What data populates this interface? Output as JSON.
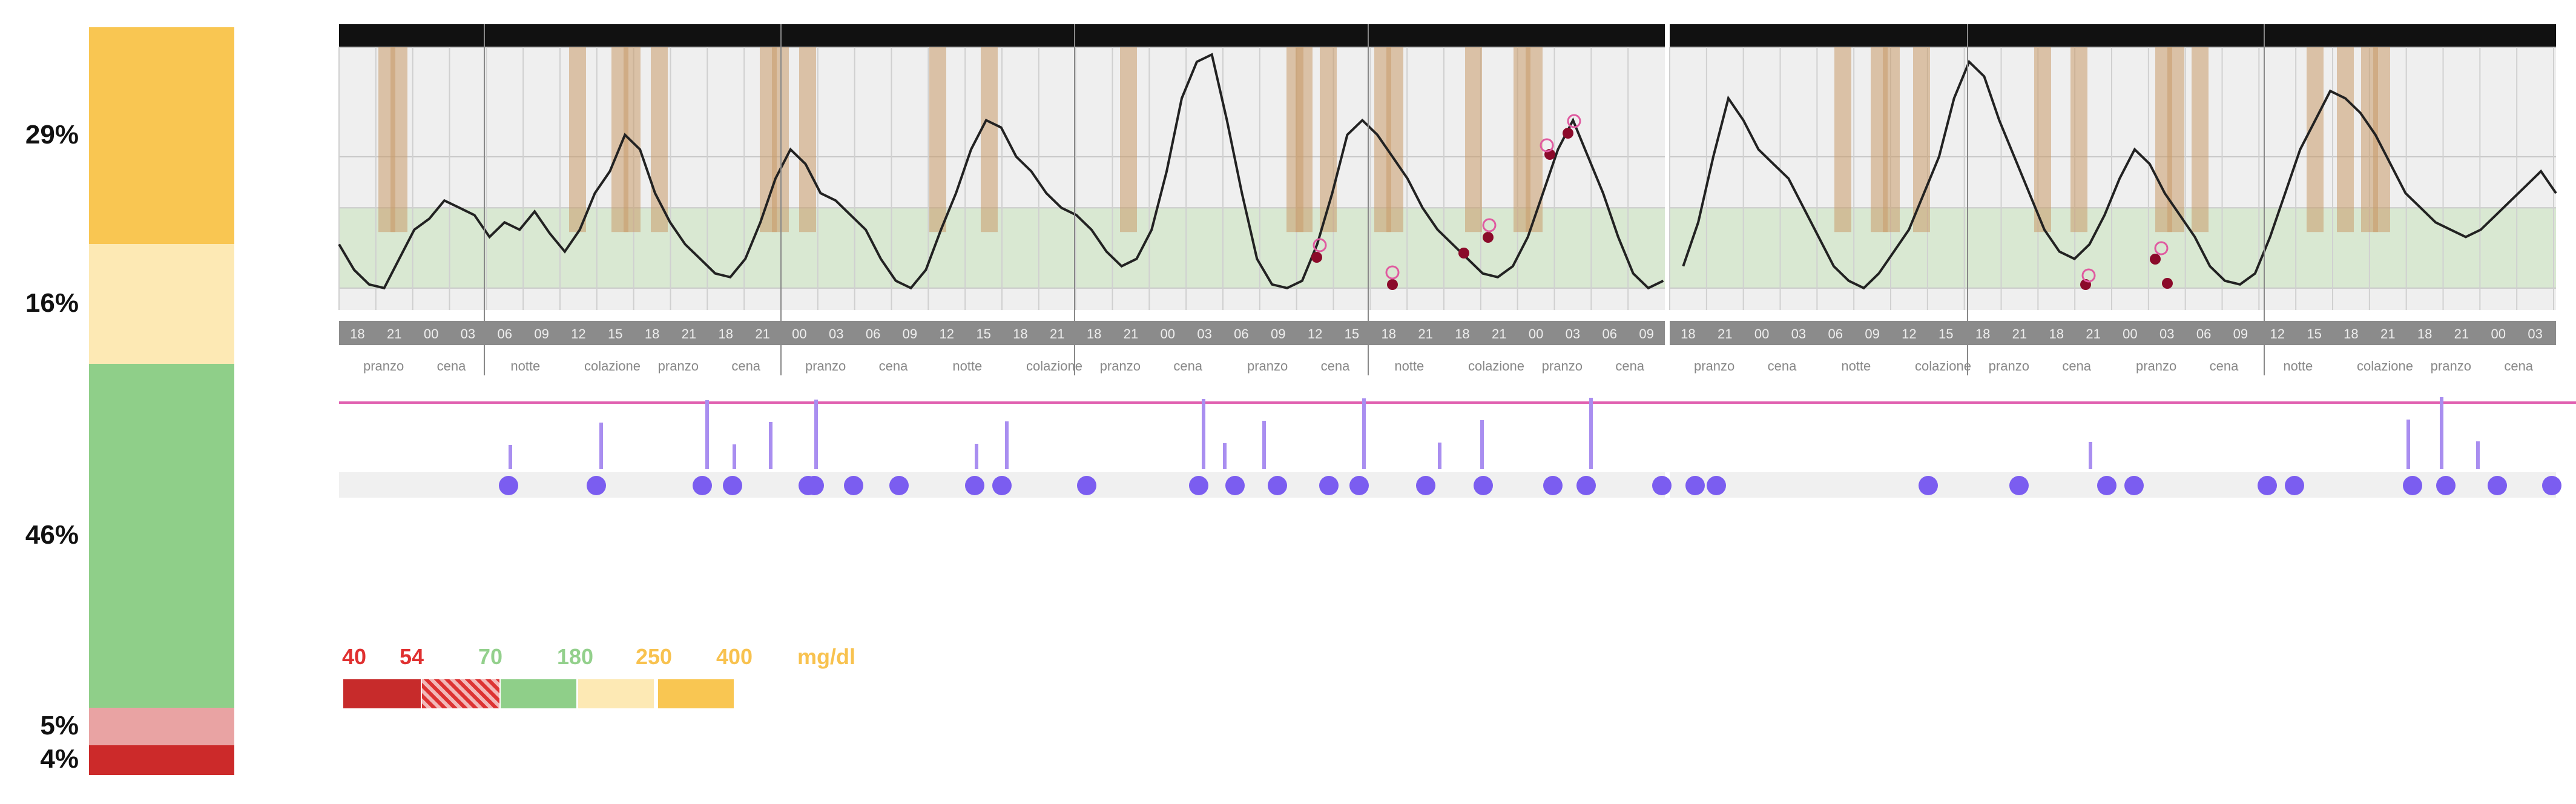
{
  "tir_bar": {
    "segments": [
      {
        "name": "very-high",
        "pct_label": "29%",
        "value": 29,
        "color": "#f9c652"
      },
      {
        "name": "high",
        "pct_label": "16%",
        "value": 16,
        "color": "#fde9b4"
      },
      {
        "name": "in-range",
        "pct_label": "46%",
        "value": 46,
        "color": "#8fcf89"
      },
      {
        "name": "low",
        "pct_label": "5%",
        "value": 5,
        "color": "#e9a3a3"
      },
      {
        "name": "very-low",
        "pct_label": "4%",
        "value": 4,
        "color": "#cc2a2a"
      }
    ]
  },
  "legend": {
    "values": [
      "40",
      "54",
      "70",
      "180",
      "250",
      "400"
    ],
    "unit": "mg/dl",
    "value_colors": [
      "#e03030",
      "#e03030",
      "#93d08c",
      "#93d08c",
      "#f8c24f",
      "#f8c24f"
    ],
    "swatch_colors": [
      "#c72b2b",
      "hatched-red",
      "#8fcf89",
      "#fde9b4",
      "#f9c652"
    ]
  },
  "chart_data": {
    "type": "line",
    "title": "",
    "panels": 2,
    "days": 7,
    "hour_ticks": [
      "18",
      "21",
      "00",
      "03",
      "06",
      "09",
      "12",
      "15",
      "18",
      "21"
    ],
    "meal_labels": [
      "pranzo",
      "cena",
      "notte",
      "colazione",
      "pranzo",
      "cena"
    ],
    "target_range": [
      70,
      180
    ],
    "ylim": [
      40,
      400
    ],
    "series": [
      {
        "values": [
          130,
          95,
          75,
          70,
          110,
          150,
          165,
          190,
          180,
          170,
          140,
          160,
          150,
          175,
          145,
          120,
          150,
          200,
          230,
          280,
          260,
          200,
          160,
          130,
          110,
          90,
          85,
          110,
          160,
          220,
          260,
          240,
          200,
          190,
          170,
          150,
          110,
          80,
          70,
          95,
          150,
          200,
          260,
          300,
          290,
          250,
          230,
          200,
          180,
          170,
          150,
          120,
          100,
          110,
          150,
          230,
          330,
          380,
          390,
          300,
          200,
          110,
          75,
          70,
          80,
          130,
          200,
          280,
          300,
          280,
          250,
          220,
          180,
          150,
          130,
          110,
          90,
          85,
          100,
          140,
          200,
          260,
          300,
          250,
          200,
          140,
          90,
          70,
          80,
          100,
          160,
          250,
          330,
          300,
          260,
          240,
          220,
          180,
          140,
          100,
          80,
          70,
          90,
          120,
          150,
          200,
          250,
          330,
          380,
          360,
          300,
          250,
          200,
          150,
          120,
          110,
          130,
          170,
          220,
          260,
          240,
          200,
          170,
          140,
          100,
          80,
          75,
          90,
          140,
          200,
          260,
          300,
          340,
          330,
          310,
          280,
          240,
          200,
          180,
          160,
          150,
          140,
          150,
          170,
          190,
          210,
          230,
          200
        ]
      }
    ],
    "annotations": []
  }
}
